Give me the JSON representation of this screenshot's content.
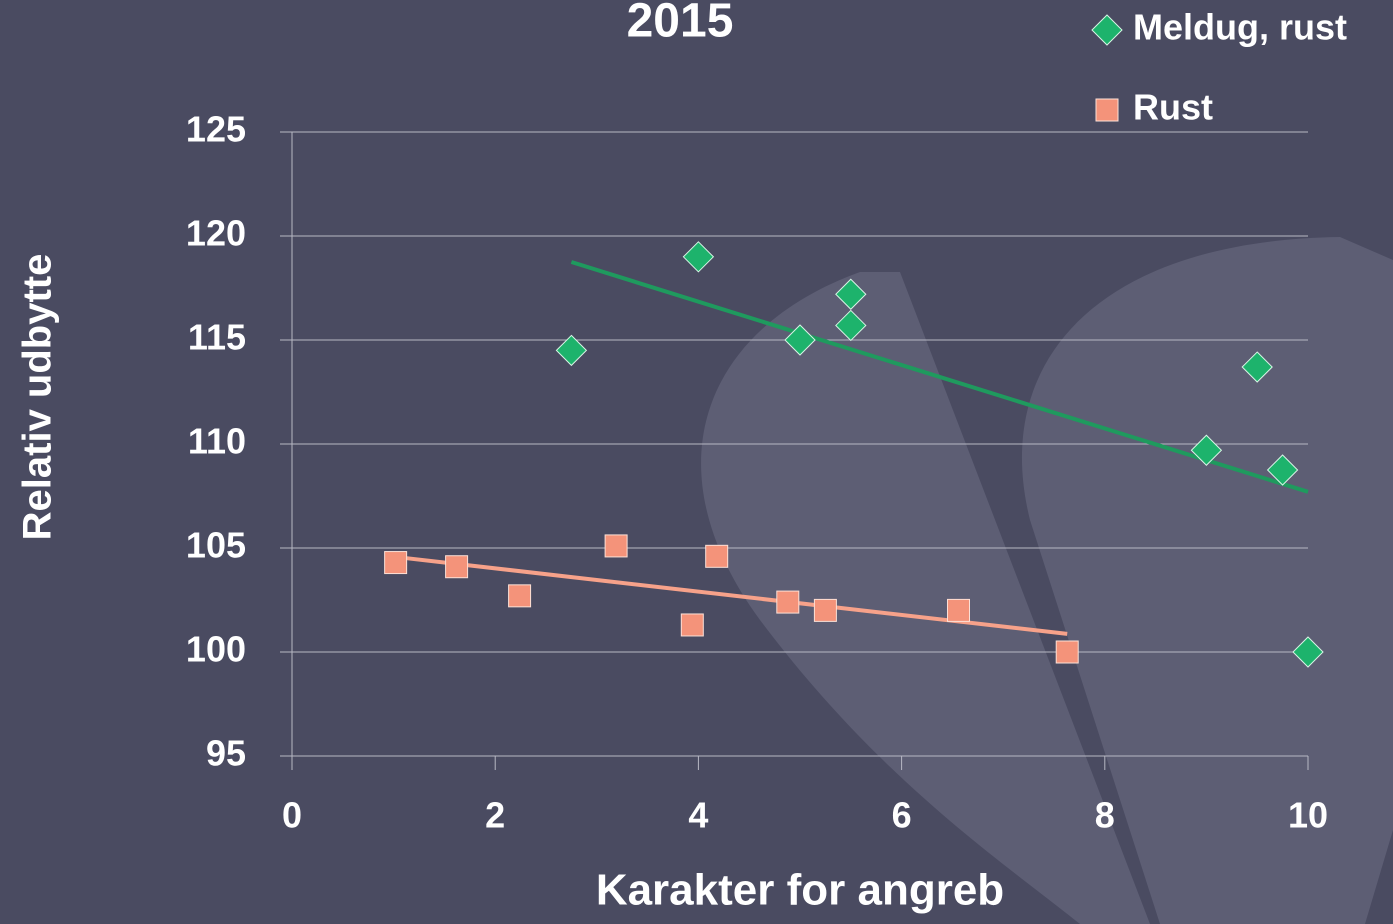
{
  "chart_data": {
    "type": "scatter",
    "title": "2015",
    "x_label": "Karakter for angreb",
    "y_label": "Relativ udbytte",
    "xlim": [
      0,
      10
    ],
    "xticks": [
      0,
      2,
      4,
      6,
      8,
      10
    ],
    "ylim": [
      95,
      125
    ],
    "yticks": [
      95,
      100,
      105,
      110,
      115,
      120,
      125
    ],
    "grid": true,
    "legend": "top-right",
    "series": [
      {
        "name": "Meldug, rust",
        "color": "#1db36c",
        "marker": "diamond",
        "x": [
          2.75,
          4.0,
          5.0,
          5.5,
          5.5,
          9.0,
          9.5,
          9.75,
          10.0
        ],
        "values": [
          114.5,
          119.0,
          115.0,
          117.2,
          115.7,
          109.7,
          113.7,
          108.75,
          100.0
        ],
        "trendline": {
          "color": "#1f9a5e",
          "x": [
            2.75,
            10.0
          ],
          "values": [
            118.75,
            107.7
          ]
        }
      },
      {
        "name": "Rust",
        "color": "#f4937a",
        "marker": "square",
        "x": [
          1.02,
          1.62,
          2.24,
          3.19,
          3.94,
          4.18,
          4.88,
          5.25,
          6.56,
          7.63
        ],
        "values": [
          104.3,
          104.1,
          102.7,
          105.1,
          101.3,
          104.6,
          102.4,
          102.0,
          102.0,
          100.0
        ],
        "trendline": {
          "color": "#f7a28a",
          "x": [
            1.02,
            7.63
          ],
          "values": [
            104.57,
            100.87
          ]
        }
      }
    ]
  }
}
